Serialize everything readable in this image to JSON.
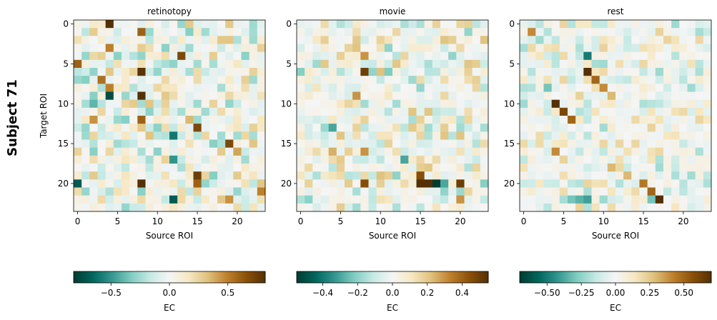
{
  "figure": {
    "suptitle": "Subject 71",
    "colormap_stops": [
      "#003c30",
      "#01665e",
      "#35978f",
      "#80cdc1",
      "#c7eae5",
      "#f5f5f5",
      "#f6e8c3",
      "#dfc27d",
      "#bf812d",
      "#8c510a",
      "#543005"
    ]
  },
  "chart_data": [
    {
      "type": "heatmap",
      "title": "retinotopy",
      "xlabel": "Source ROI",
      "ylabel": "Target ROI",
      "n_rois": 24,
      "xticks": [
        0,
        5,
        10,
        15,
        20
      ],
      "yticks": [
        0,
        5,
        10,
        15,
        20
      ],
      "vmin": -0.82,
      "vmax": 0.82,
      "colorbar": {
        "label": "EC",
        "ticks": [
          -0.5,
          0.0,
          0.5
        ],
        "tick_labels": [
          "−0.5",
          "0.0",
          "0.5"
        ]
      },
      "seed": 71,
      "noise_scale": 0.32,
      "strong_cells": [
        [
          0,
          4,
          0.82
        ],
        [
          1,
          8,
          0.6
        ],
        [
          3,
          4,
          0.5
        ],
        [
          3,
          11,
          -0.3
        ],
        [
          4,
          5,
          -0.3
        ],
        [
          6,
          8,
          0.8
        ],
        [
          8,
          4,
          0.5
        ],
        [
          9,
          4,
          -0.75
        ],
        [
          9,
          8,
          0.85
        ],
        [
          10,
          2,
          -0.4
        ],
        [
          12,
          2,
          0.45
        ],
        [
          12,
          8,
          0.6
        ],
        [
          12,
          14,
          0.35
        ],
        [
          13,
          15,
          0.7
        ],
        [
          13,
          10,
          -0.3
        ],
        [
          14,
          12,
          -0.6
        ],
        [
          15,
          19,
          0.7
        ],
        [
          16,
          20,
          0.4
        ],
        [
          17,
          12,
          -0.5
        ],
        [
          19,
          15,
          0.75
        ],
        [
          20,
          0,
          -0.7
        ],
        [
          20,
          8,
          0.85
        ],
        [
          20,
          15,
          0.6
        ],
        [
          22,
          12,
          -0.7
        ],
        [
          22,
          19,
          0.45
        ],
        [
          5,
          0,
          0.6
        ],
        [
          7,
          3,
          0.55
        ],
        [
          4,
          13,
          0.7
        ],
        [
          21,
          23,
          0.5
        ]
      ]
    },
    {
      "type": "heatmap",
      "title": "movie",
      "xlabel": "Source ROI",
      "ylabel": "",
      "n_rois": 24,
      "xticks": [
        0,
        5,
        10,
        15,
        20
      ],
      "yticks": [
        0,
        5,
        10,
        15,
        20
      ],
      "vmin": -0.55,
      "vmax": 0.55,
      "colorbar": {
        "label": "EC",
        "ticks": [
          -0.4,
          -0.2,
          0.0,
          0.2,
          0.4
        ],
        "tick_labels": [
          "−0.4",
          "−0.2",
          "0.0",
          "0.2",
          "0.4"
        ]
      },
      "seed": 1071,
      "noise_scale": 0.22,
      "strong_cells": [
        [
          6,
          8,
          0.5
        ],
        [
          9,
          7,
          0.3
        ],
        [
          13,
          4,
          -0.3
        ],
        [
          16,
          4,
          0.25
        ],
        [
          17,
          13,
          -0.3
        ],
        [
          19,
          15,
          0.45
        ],
        [
          20,
          15,
          0.55
        ],
        [
          20,
          16,
          0.55
        ],
        [
          20,
          17,
          -0.55
        ],
        [
          20,
          20,
          0.5
        ],
        [
          20,
          8,
          0.45
        ],
        [
          20,
          18,
          -0.3
        ],
        [
          22,
          20,
          0.3
        ],
        [
          16,
          8,
          0.3
        ],
        [
          4,
          8,
          0.3
        ]
      ]
    },
    {
      "type": "heatmap",
      "title": "rest",
      "xlabel": "Source ROI",
      "ylabel": "",
      "n_rois": 24,
      "xticks": [
        0,
        5,
        10,
        15,
        20
      ],
      "yticks": [
        0,
        5,
        10,
        15,
        20
      ],
      "vmin": -0.7,
      "vmax": 0.7,
      "colorbar": {
        "label": "EC",
        "ticks": [
          -0.5,
          -0.25,
          0.0,
          0.25,
          0.5
        ],
        "tick_labels": [
          "−0.50",
          "−0.25",
          "0.00",
          "0.25",
          "0.50"
        ]
      },
      "seed": 2071,
      "noise_scale": 0.22,
      "strong_cells": [
        [
          1,
          1,
          0.4
        ],
        [
          4,
          8,
          -0.5
        ],
        [
          6,
          8,
          0.7
        ],
        [
          7,
          9,
          0.5
        ],
        [
          8,
          10,
          0.4
        ],
        [
          9,
          11,
          0.3
        ],
        [
          10,
          4,
          0.7
        ],
        [
          11,
          5,
          0.6
        ],
        [
          12,
          6,
          0.5
        ],
        [
          8,
          3,
          -0.3
        ],
        [
          16,
          4,
          0.4
        ],
        [
          18,
          11,
          0.3
        ],
        [
          19,
          13,
          0.3
        ],
        [
          20,
          15,
          0.45
        ],
        [
          21,
          16,
          0.5
        ],
        [
          22,
          17,
          0.7
        ],
        [
          22,
          16,
          -0.3
        ],
        [
          22,
          8,
          -0.4
        ],
        [
          22,
          7,
          -0.35
        ],
        [
          22,
          6,
          -0.3
        ]
      ]
    }
  ]
}
